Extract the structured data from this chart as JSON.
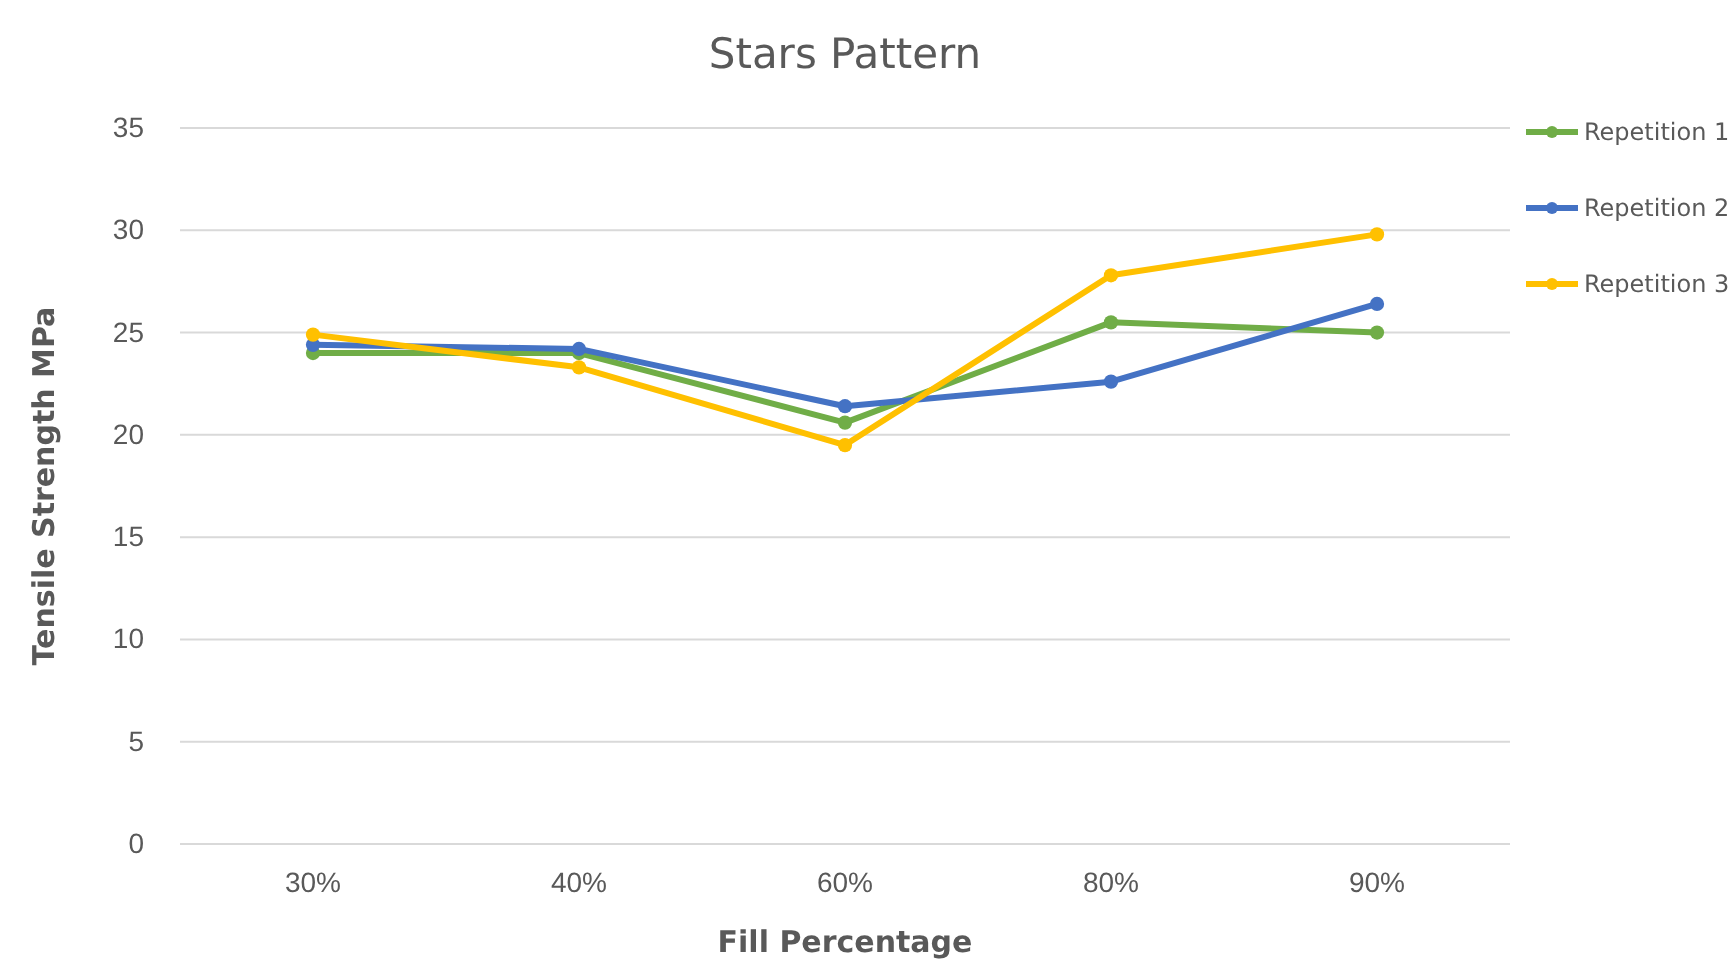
{
  "chart_data": {
    "type": "line",
    "title": "Stars Pattern",
    "xlabel": "Fill Percentage",
    "ylabel": "Tensile Strength MPa",
    "categories": [
      "30%",
      "40%",
      "60%",
      "80%",
      "90%"
    ],
    "series": [
      {
        "name": "Repetition 1",
        "color": "#70ad47",
        "values": [
          24.0,
          24.0,
          20.6,
          25.5,
          25.0
        ]
      },
      {
        "name": "Repetition 2",
        "color": "#4472c4",
        "values": [
          24.4,
          24.2,
          21.4,
          22.6,
          26.4
        ]
      },
      {
        "name": "Repetition 3",
        "color": "#ffc000",
        "values": [
          24.9,
          23.3,
          19.5,
          27.8,
          29.8
        ]
      }
    ],
    "ylim": [
      0,
      35
    ],
    "yticks": [
      0,
      5,
      10,
      15,
      20,
      25,
      30,
      35
    ],
    "grid": "y",
    "legend": "right",
    "marker": "circle",
    "line_style": "solid"
  }
}
